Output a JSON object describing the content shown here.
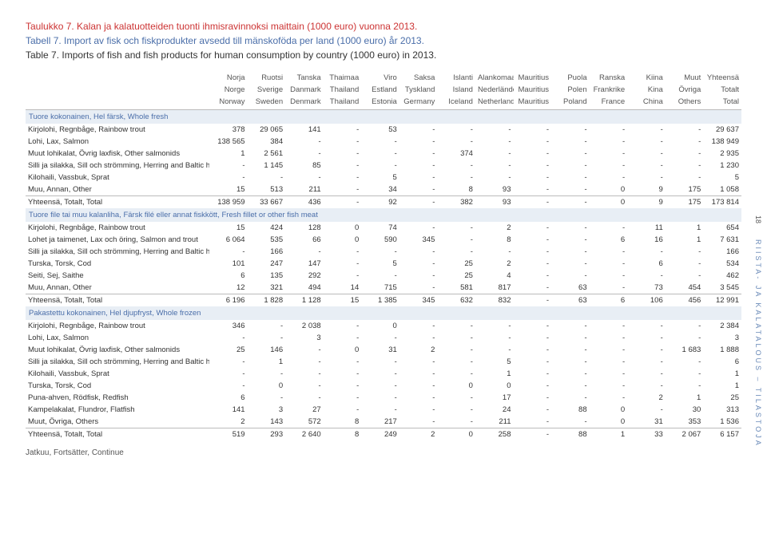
{
  "titles": {
    "fi": "Taulukko 7. Kalan ja kalatuotteiden tuonti ihmisravinnoksi maittain (1000 euro) vuonna 2013.",
    "sv": "Tabell 7. Import av fisk och fiskprodukter avsedd till mänskoföda per land (1000 euro) år 2013.",
    "en": "Table 7. Imports of fish and fish products for human consumption by country (1000 euro) in 2013."
  },
  "header": {
    "row1": [
      "Norja",
      "Ruotsi",
      "Tanska",
      "Thaimaa",
      "Viro",
      "Saksa",
      "Islanti",
      "Alankomaat",
      "Mauritius",
      "Puola",
      "Ranska",
      "Kiina",
      "Muut",
      "Yhteensä"
    ],
    "row2": [
      "Norge",
      "Sverige",
      "Danmark",
      "Thailand",
      "Estland",
      "Tyskland",
      "Island",
      "Nederländerna",
      "Mauritius",
      "Polen",
      "Frankrike",
      "Kina",
      "Övriga",
      "Totalt"
    ],
    "row3": [
      "Norway",
      "Sweden",
      "Denmark",
      "Thailand",
      "Estonia",
      "Germany",
      "Iceland",
      "Netherlands",
      "Mauritius",
      "Poland",
      "France",
      "China",
      "Others",
      "Total"
    ]
  },
  "sections": [
    {
      "title": "Tuore kokonainen, Hel färsk, Whole fresh",
      "rows": [
        {
          "label": "Kirjolohi, Regnbåge, Rainbow trout",
          "v": [
            "378",
            "29 065",
            "141",
            "-",
            "53",
            "-",
            "-",
            "-",
            "-",
            "-",
            "-",
            "-",
            "-",
            "29 637"
          ]
        },
        {
          "label": "Lohi, Lax, Salmon",
          "v": [
            "138 565",
            "384",
            "-",
            "-",
            "-",
            "-",
            "-",
            "-",
            "-",
            "-",
            "-",
            "-",
            "-",
            "138 949"
          ]
        },
        {
          "label": "Muut lohikalat, Övrig laxfisk, Other salmonids",
          "v": [
            "1",
            "2 561",
            "-",
            "-",
            "-",
            "-",
            "374",
            "-",
            "-",
            "-",
            "-",
            "-",
            "-",
            "2 935"
          ]
        },
        {
          "label": "Silli ja silakka, Sill och strömming, Herring and Baltic herring",
          "v": [
            "-",
            "1 145",
            "85",
            "-",
            "-",
            "-",
            "-",
            "-",
            "-",
            "-",
            "-",
            "-",
            "-",
            "1 230"
          ]
        },
        {
          "label": "Kilohaili, Vassbuk, Sprat",
          "v": [
            "-",
            "-",
            "-",
            "-",
            "5",
            "-",
            "-",
            "-",
            "-",
            "-",
            "-",
            "-",
            "-",
            "5"
          ]
        },
        {
          "label": "Muu, Annan, Other",
          "v": [
            "15",
            "513",
            "211",
            "-",
            "34",
            "-",
            "8",
            "93",
            "-",
            "-",
            "0",
            "9",
            "175",
            "1 058"
          ]
        }
      ],
      "total": {
        "label": "Yhteensä, Totalt, Total",
        "v": [
          "138 959",
          "33 667",
          "436",
          "-",
          "92",
          "-",
          "382",
          "93",
          "-",
          "-",
          "0",
          "9",
          "175",
          "173 814"
        ]
      }
    },
    {
      "title": "Tuore file tai muu kalanliha, Färsk filé eller annat fiskkött, Fresh fillet or other fish meat",
      "rows": [
        {
          "label": "Kirjolohi, Regnbåge, Rainbow trout",
          "v": [
            "15",
            "424",
            "128",
            "0",
            "74",
            "-",
            "-",
            "2",
            "-",
            "-",
            "-",
            "11",
            "1",
            "654"
          ]
        },
        {
          "label": "Lohet ja taimenet, Lax och öring, Salmon and trout",
          "v": [
            "6 064",
            "535",
            "66",
            "0",
            "590",
            "345",
            "-",
            "8",
            "-",
            "-",
            "6",
            "16",
            "1",
            "7 631"
          ]
        },
        {
          "label": "Silli ja silakka, Sill och strömming, Herring and Baltic herring",
          "v": [
            "-",
            "166",
            "-",
            "-",
            "-",
            "-",
            "-",
            "-",
            "-",
            "-",
            "-",
            "-",
            "-",
            "166"
          ]
        },
        {
          "label": "Turska, Torsk, Cod",
          "v": [
            "101",
            "247",
            "147",
            "-",
            "5",
            "-",
            "25",
            "2",
            "-",
            "-",
            "-",
            "6",
            "-",
            "534"
          ]
        },
        {
          "label": "Seiti, Sej, Saithe",
          "v": [
            "6",
            "135",
            "292",
            "-",
            "-",
            "-",
            "25",
            "4",
            "-",
            "-",
            "-",
            "-",
            "-",
            "462"
          ]
        },
        {
          "label": "Muu, Annan, Other",
          "v": [
            "12",
            "321",
            "494",
            "14",
            "715",
            "-",
            "581",
            "817",
            "-",
            "63",
            "-",
            "73",
            "454",
            "3 545"
          ]
        }
      ],
      "total": {
        "label": "Yhteensä, Totalt, Total",
        "v": [
          "6 196",
          "1 828",
          "1 128",
          "15",
          "1 385",
          "345",
          "632",
          "832",
          "-",
          "63",
          "6",
          "106",
          "456",
          "12 991"
        ]
      }
    },
    {
      "title": "Pakastettu kokonainen, Hel djupfryst, Whole frozen",
      "rows": [
        {
          "label": "Kirjolohi, Regnbåge, Rainbow trout",
          "v": [
            "346",
            "-",
            "2 038",
            "-",
            "0",
            "-",
            "-",
            "-",
            "-",
            "-",
            "-",
            "-",
            "-",
            "2 384"
          ]
        },
        {
          "label": "Lohi, Lax, Salmon",
          "v": [
            "-",
            "-",
            "3",
            "-",
            "-",
            "-",
            "-",
            "-",
            "-",
            "-",
            "-",
            "-",
            "-",
            "3"
          ]
        },
        {
          "label": "Muut lohikalat, Övrig laxfisk, Other salmonids",
          "v": [
            "25",
            "146",
            "-",
            "0",
            "31",
            "2",
            "-",
            "-",
            "-",
            "-",
            "-",
            "-",
            "1 683",
            "1 888"
          ]
        },
        {
          "label": "Silli ja silakka, Sill och strömming, Herring and Baltic herring",
          "v": [
            "-",
            "1",
            "-",
            "-",
            "-",
            "-",
            "-",
            "5",
            "-",
            "-",
            "-",
            "-",
            "-",
            "6"
          ]
        },
        {
          "label": "Kilohaili, Vassbuk, Sprat",
          "v": [
            "-",
            "-",
            "-",
            "-",
            "-",
            "-",
            "-",
            "1",
            "-",
            "-",
            "-",
            "-",
            "-",
            "1"
          ]
        },
        {
          "label": "Turska, Torsk, Cod",
          "v": [
            "-",
            "0",
            "-",
            "-",
            "-",
            "-",
            "0",
            "0",
            "-",
            "-",
            "-",
            "-",
            "-",
            "1"
          ]
        },
        {
          "label": "Puna-ahven, Rödfisk, Redfish",
          "v": [
            "6",
            "-",
            "-",
            "-",
            "-",
            "-",
            "-",
            "17",
            "-",
            "-",
            "-",
            "2",
            "1",
            "25"
          ]
        },
        {
          "label": "Kampelakalat, Flundror, Flatfish",
          "v": [
            "141",
            "3",
            "27",
            "-",
            "-",
            "-",
            "-",
            "24",
            "-",
            "88",
            "0",
            "-",
            "30",
            "313"
          ]
        },
        {
          "label": "Muut, Övriga, Others",
          "v": [
            "2",
            "143",
            "572",
            "8",
            "217",
            "-",
            "-",
            "211",
            "-",
            "-",
            "0",
            "31",
            "353",
            "1 536"
          ]
        }
      ],
      "total": {
        "label": "Yhteensä, Totalt, Total",
        "v": [
          "519",
          "293",
          "2 640",
          "8",
          "249",
          "2",
          "0",
          "258",
          "-",
          "88",
          "1",
          "33",
          "2 067",
          "6 157"
        ]
      }
    }
  ],
  "continue": "Jatkuu, Fortsätter, Continue",
  "side": {
    "page": "18",
    "label": "RIISTA- JA KALATALOUS – TILASTOJA"
  },
  "style": {
    "title_color_fi": "#c33",
    "title_color_sv": "#4a6ea9",
    "title_color_en": "#333",
    "section_bg": "#e8eef5",
    "section_color": "#4a6ea9",
    "border_color": "#bbb",
    "font_size_body": 11,
    "font_size_table": 9.5
  }
}
